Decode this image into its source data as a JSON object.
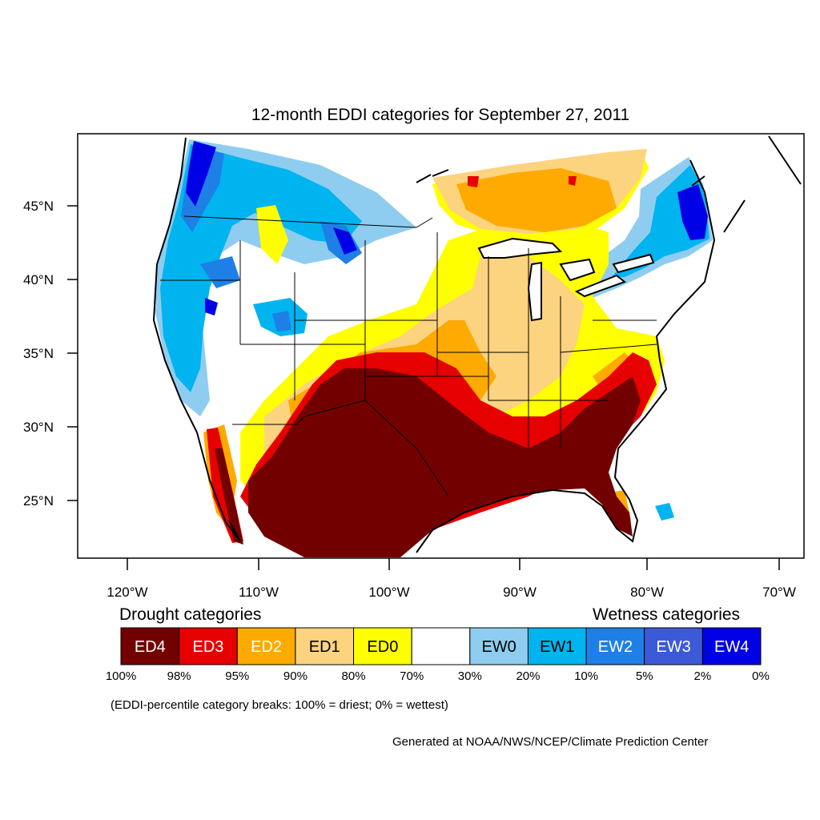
{
  "title": "12-month EDDI categories for September 27, 2011",
  "axes": {
    "lat_labels": [
      "45°N",
      "40°N",
      "35°N",
      "30°N",
      "25°N"
    ],
    "lon_labels": [
      "120°W",
      "110°W",
      "100°W",
      "90°W",
      "80°W",
      "70°W"
    ]
  },
  "legend": {
    "drought_heading": "Drought categories",
    "wetness_heading": "Wetness categories",
    "categories": [
      {
        "label": "ED4",
        "color": "#730000",
        "text_color": "#ffffff"
      },
      {
        "label": "ED3",
        "color": "#e60000",
        "text_color": "#ffffff"
      },
      {
        "label": "ED2",
        "color": "#ffaa00",
        "text_color": "#ffffff"
      },
      {
        "label": "ED1",
        "color": "#fcd37f",
        "text_color": "#000000"
      },
      {
        "label": "ED0",
        "color": "#ffff00",
        "text_color": "#000000"
      },
      {
        "label": "",
        "color": "#ffffff",
        "text_color": "#000000"
      },
      {
        "label": "EW0",
        "color": "#8ecdf0",
        "text_color": "#000000"
      },
      {
        "label": "EW1",
        "color": "#00b4f0",
        "text_color": "#000000"
      },
      {
        "label": "EW2",
        "color": "#1e7fe6",
        "text_color": "#ffffff"
      },
      {
        "label": "EW3",
        "color": "#3c5ad7",
        "text_color": "#ffffff"
      },
      {
        "label": "EW4",
        "color": "#0000e6",
        "text_color": "#ffffff"
      }
    ],
    "breaks": [
      "100%",
      "98%",
      "95%",
      "90%",
      "80%",
      "70%",
      "30%",
      "20%",
      "10%",
      "5%",
      "2%",
      "0%"
    ],
    "note": "(EDDI-percentile category breaks: 100% = driest; 0% = wettest)"
  },
  "credit": "Generated at NOAA/NWS/NCEP/Climate Prediction Center"
}
